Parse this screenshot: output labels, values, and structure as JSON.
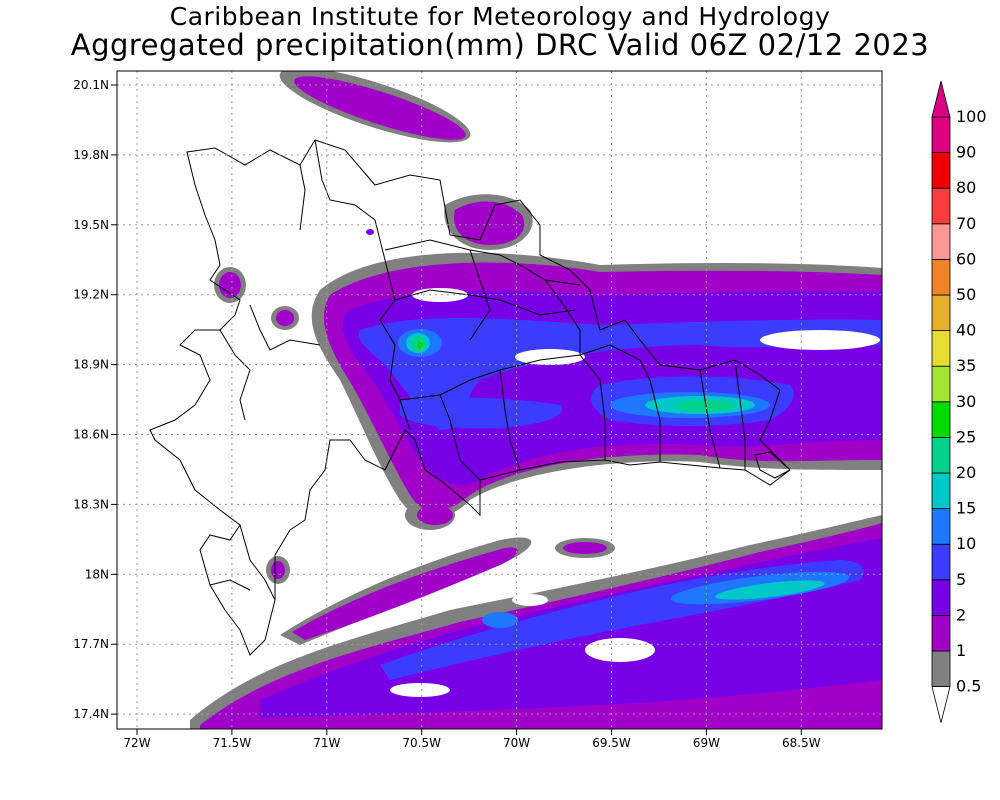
{
  "header": {
    "institute": "Caribbean Institute for Meteorology and Hydrology",
    "product": "Aggregated precipitation(mm) DRC Valid 06Z 02/12 2023"
  },
  "map": {
    "region": "Dominican Republic / Haiti (Hispaniola)",
    "lat_range": [
      17.33,
      20.17
    ],
    "lon_range": [
      -72.1,
      -68.0
    ],
    "lat_ticks": [
      "20.1N",
      "19.8N",
      "19.5N",
      "19.2N",
      "18.9N",
      "18.6N",
      "18.3N",
      "18N",
      "17.7N",
      "17.4N"
    ],
    "lon_ticks": [
      "72W",
      "71.5W",
      "71W",
      "70.5W",
      "70W",
      "69.5W",
      "69W",
      "68.5W"
    ],
    "grid": true
  },
  "colorbar": {
    "levels": [
      "0.5",
      "1",
      "2",
      "5",
      "10",
      "15",
      "20",
      "25",
      "30",
      "35",
      "40",
      "50",
      "60",
      "70",
      "80",
      "90",
      "100"
    ],
    "colors": [
      "#808080",
      "#a000c8",
      "#7800e6",
      "#3c3cff",
      "#1e78ff",
      "#00c8c8",
      "#00d28c",
      "#00dc00",
      "#a0e632",
      "#e6dc32",
      "#e6af2d",
      "#f08228",
      "#fa9696",
      "#fa3c3c",
      "#f00000",
      "#dc0082"
    ]
  }
}
